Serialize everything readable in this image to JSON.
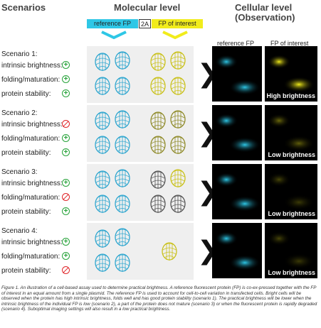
{
  "headers": {
    "scenarios": "Scenarios",
    "molecular": "Molecular level",
    "cellular": "Cellular level\n(Observation)"
  },
  "construct": {
    "ref": "reference FP",
    "linker": "2A",
    "foi": "FP of interest"
  },
  "cell_columns": {
    "ref": "reference FP",
    "foi": "FP of interest"
  },
  "properties": [
    "intrinsic brightness:",
    "folding/maturation:",
    "protein stability:"
  ],
  "scenarios": [
    {
      "title": "Scenario 1:",
      "status": [
        "ok",
        "ok",
        "ok"
      ],
      "label": "High brightness"
    },
    {
      "title": "Scenario 2:",
      "status": [
        "no",
        "ok",
        "ok"
      ],
      "label": "Low brightness"
    },
    {
      "title": "Scenario 3:",
      "status": [
        "ok",
        "no",
        "ok"
      ],
      "label": "Low brightness"
    },
    {
      "title": "Scenario 4:",
      "status": [
        "ok",
        "ok",
        "no"
      ],
      "label": "Low brightness"
    }
  ],
  "caption": "Figure 1. An illustration of a cell-based assay used to determine practical brightness. A reference fluorescent protein (FP) is co-ex-pressed together with the FP of interest in an equal amount from a single plasmid. The reference FP is used to account for cell-to-cell variation in transfected cells. Bright cells will be observed when the protein has high intrinsic brightness, folds well and has good protein stability (scenario 1). The practical brightness will be lower when the intrinsic brightness of the individual FP is low (scenario 2), a part of the protein does not mature (scenario 3) or when the fluorescent protein is rapidly degraded (scenario 4). Suboptimal imaging settings will also result in a low practical brightness.",
  "colors": {
    "cyan": "#2ec7e6",
    "yellow": "#f1ec1b",
    "ok": "#27a33a",
    "no": "#e0262a"
  },
  "icons": {
    "ok": "plus-circle-icon",
    "no": "prohibited-icon",
    "arrow": "chevron-right-icon"
  }
}
